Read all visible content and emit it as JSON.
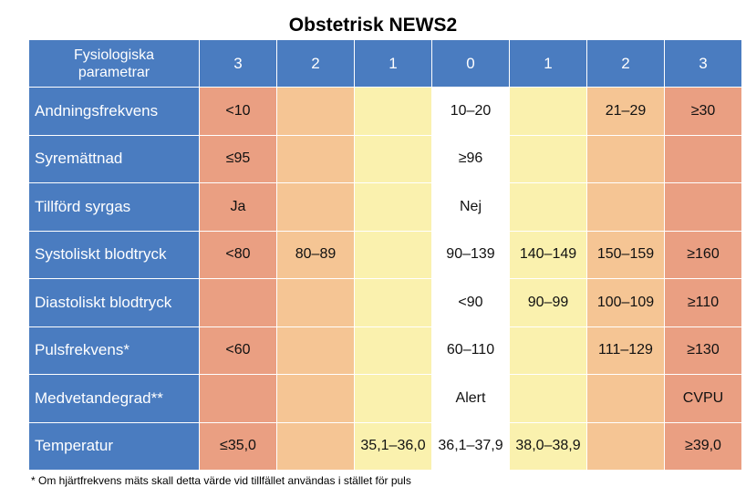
{
  "title": "Obstetrisk NEWS2",
  "header": {
    "param_label_line1": "Fysiologiska",
    "param_label_line2": "parametrar",
    "scores": [
      "3",
      "2",
      "1",
      "0",
      "1",
      "2",
      "3"
    ]
  },
  "colors": {
    "header_blue": "#4a7cc0",
    "score_3": "#ea9f82",
    "score_2": "#f5c594",
    "score_1": "#faf1ae",
    "score_0": "#ffffff"
  },
  "rows": [
    {
      "label": "Andningsfrekvens",
      "cells": [
        "<10",
        "",
        "",
        "10–20",
        "",
        "21–29",
        "≥30"
      ]
    },
    {
      "label": "Syremättnad",
      "cells": [
        "≤95",
        "",
        "",
        "≥96",
        "",
        "",
        ""
      ]
    },
    {
      "label": "Tillförd syrgas",
      "cells": [
        "Ja",
        "",
        "",
        "Nej",
        "",
        "",
        ""
      ]
    },
    {
      "label": "Systoliskt blodtryck",
      "cells": [
        "<80",
        "80–89",
        "",
        "90–139",
        "140–149",
        "150–159",
        "≥160"
      ]
    },
    {
      "label": "Diastoliskt blodtryck",
      "cells": [
        "",
        "",
        "",
        "<90",
        "90–99",
        "100–109",
        "≥110"
      ]
    },
    {
      "label": "Pulsfrekvens*",
      "cells": [
        "<60",
        "",
        "",
        "60–110",
        "",
        "111–129",
        "≥130"
      ]
    },
    {
      "label": "Medvetandegrad**",
      "cells": [
        "",
        "",
        "",
        "Alert",
        "",
        "",
        "CVPU"
      ]
    },
    {
      "label": "Temperatur",
      "cells": [
        "≤35,0",
        "",
        "35,1–36,0",
        "36,1–37,9",
        "38,0–38,9",
        "",
        "≥39,0"
      ]
    }
  ],
  "footnote": "* Om hjärtfrekvens mäts skall detta värde vid tillfället användas i stället för puls"
}
